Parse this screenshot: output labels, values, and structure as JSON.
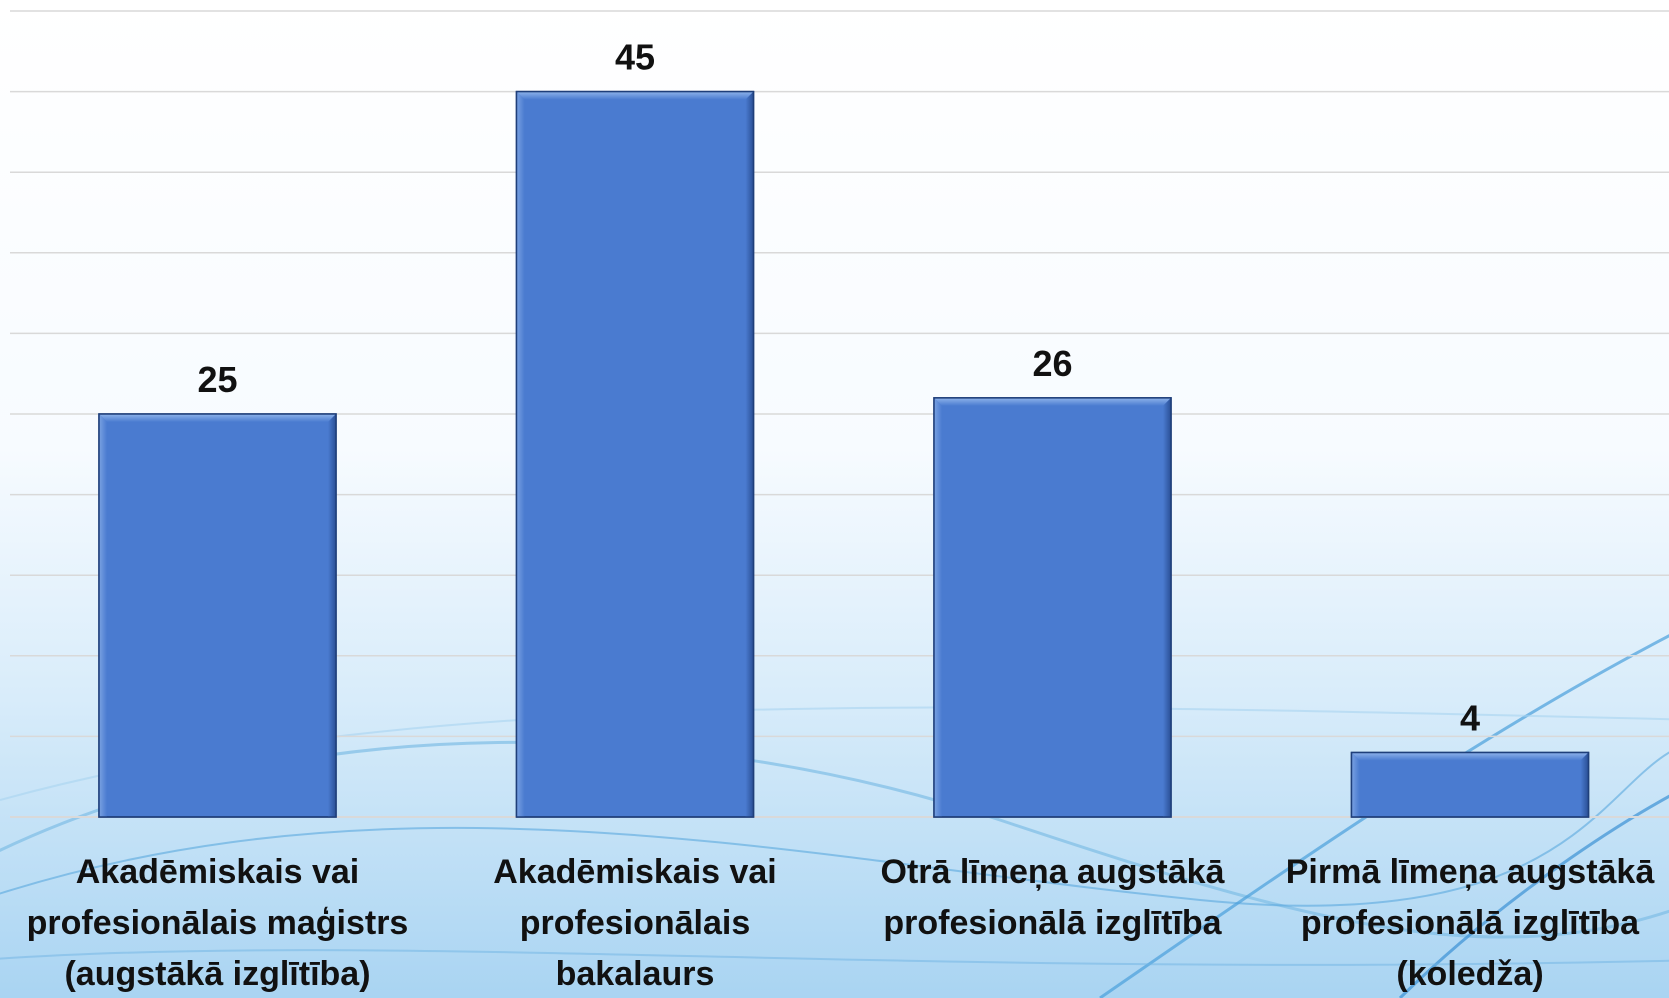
{
  "chart_data": {
    "type": "bar",
    "categories": [
      [
        "Akadēmiskais vai",
        "profesionālais maģistrs",
        "(augstākā izglītība)"
      ],
      [
        "Akadēmiskais vai",
        "profesionālais",
        "bakalaurs"
      ],
      [
        "Otrā līmeņa augstākā",
        "profesionālā izglītība"
      ],
      [
        "Pirmā līmeņa augstākā",
        "profesionālā izglītība",
        "(koledža)"
      ]
    ],
    "values": [
      25,
      45,
      26,
      4
    ],
    "data_labels": [
      "25",
      "45",
      "26",
      "4"
    ],
    "ylim": [
      0,
      50
    ],
    "grid": true,
    "legend": "none",
    "title": "",
    "xlabel": "",
    "ylabel": ""
  },
  "colors": {
    "bar": "#4a7bd0",
    "bar_edge": "#1f3f7a",
    "gridline": "#d9d9d9",
    "text": "#111111"
  }
}
